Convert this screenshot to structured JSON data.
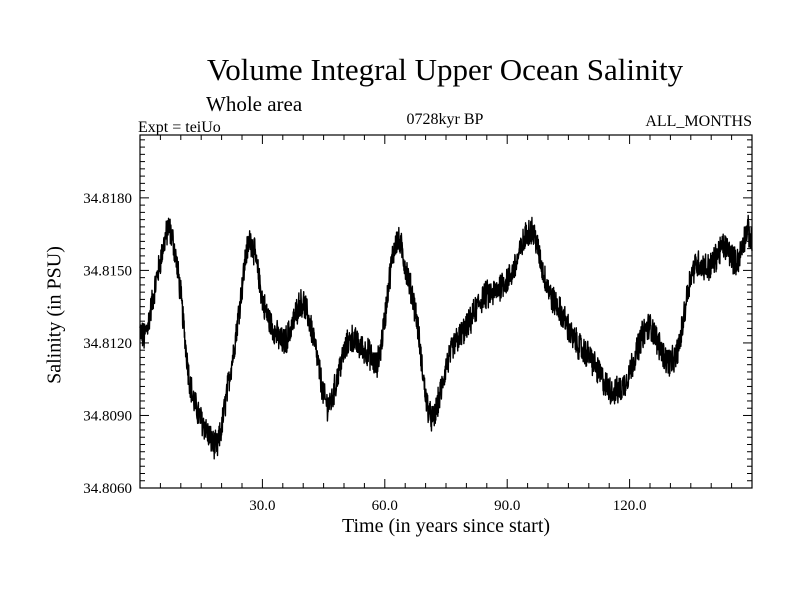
{
  "chart_data": {
    "type": "line",
    "title": "Volume Integral Upper Ocean Salinity",
    "subtitle": "Whole area",
    "experiment_label": "Expt = teiUo",
    "period_label": "0728kyr BP",
    "months_label": "ALL_MONTHS",
    "xlabel": "Time (in years since start)",
    "ylabel": "Salinity (in PSU)",
    "xlim": [
      0,
      150
    ],
    "ylim": [
      34.806,
      34.8206
    ],
    "xticks": [
      30.0,
      60.0,
      90.0,
      120.0
    ],
    "xtick_labels": [
      "30.0",
      "60.0",
      "90.0",
      "120.0"
    ],
    "yticks": [
      34.806,
      34.809,
      34.812,
      34.815,
      34.818
    ],
    "ytick_labels": [
      "34.8060",
      "34.8090",
      "34.8120",
      "34.8150",
      "34.8180"
    ],
    "series": [
      {
        "name": "Salinity",
        "color": "#000000",
        "noise_amplitude": 0.0006,
        "x": [
          0,
          1,
          2,
          3,
          4,
          5,
          6,
          7,
          8,
          9,
          10,
          11,
          12,
          13,
          14,
          15,
          16,
          17,
          18,
          19,
          20,
          21,
          22,
          23,
          24,
          25,
          26,
          27,
          28,
          29,
          30,
          31,
          32,
          33,
          34,
          35,
          36,
          37,
          38,
          39,
          40,
          41,
          42,
          43,
          44,
          45,
          46,
          47,
          48,
          49,
          50,
          51,
          52,
          53,
          54,
          55,
          56,
          57,
          58,
          59,
          60,
          61,
          62,
          63,
          64,
          65,
          66,
          67,
          68,
          69,
          70,
          71,
          72,
          73,
          74,
          75,
          76,
          77,
          78,
          79,
          80,
          81,
          82,
          83,
          84,
          85,
          86,
          87,
          88,
          89,
          90,
          91,
          92,
          93,
          94,
          95,
          96,
          97,
          98,
          99,
          100,
          101,
          102,
          103,
          104,
          105,
          106,
          107,
          108,
          109,
          110,
          111,
          112,
          113,
          114,
          115,
          116,
          117,
          118,
          119,
          120,
          121,
          122,
          123,
          124,
          125,
          126,
          127,
          128,
          129,
          130,
          131,
          132,
          133,
          134,
          135,
          136,
          137,
          138,
          139,
          140,
          141,
          142,
          143,
          144,
          145,
          146,
          147,
          148,
          149,
          150
        ],
        "y": [
          34.8125,
          34.8122,
          34.8128,
          34.8137,
          34.8146,
          34.8154,
          34.8162,
          34.8168,
          34.8163,
          34.8153,
          34.814,
          34.8122,
          34.8106,
          34.8097,
          34.8092,
          34.8088,
          34.8085,
          34.8081,
          34.8078,
          34.8077,
          34.8085,
          34.8096,
          34.8107,
          34.8117,
          34.813,
          34.8143,
          34.8157,
          34.8163,
          34.8158,
          34.8148,
          34.8138,
          34.8132,
          34.8128,
          34.8125,
          34.8122,
          34.812,
          34.8122,
          34.8126,
          34.8131,
          34.8136,
          34.8137,
          34.8132,
          34.8126,
          34.8118,
          34.8108,
          34.8098,
          34.8094,
          34.8096,
          34.8103,
          34.811,
          34.8116,
          34.812,
          34.8122,
          34.812,
          34.8118,
          34.8117,
          34.8116,
          34.8113,
          34.811,
          34.8118,
          34.813,
          34.8145,
          34.8157,
          34.8163,
          34.816,
          34.8152,
          34.8145,
          34.8138,
          34.8128,
          34.8112,
          34.8098,
          34.809,
          34.8088,
          34.8095,
          34.8102,
          34.811,
          34.8115,
          34.8119,
          34.8122,
          34.8124,
          34.8126,
          34.8129,
          34.8133,
          34.8136,
          34.8139,
          34.814,
          34.814,
          34.8141,
          34.8143,
          34.8145,
          34.8146,
          34.8148,
          34.8152,
          34.8157,
          34.8162,
          34.8166,
          34.8167,
          34.8163,
          34.8155,
          34.8148,
          34.8143,
          34.8138,
          34.8136,
          34.8133,
          34.813,
          34.8126,
          34.8122,
          34.812,
          34.8118,
          34.8116,
          34.8115,
          34.8112,
          34.8109,
          34.8106,
          34.8103,
          34.8101,
          34.81,
          34.81,
          34.8101,
          34.8104,
          34.8108,
          34.8113,
          34.8118,
          34.8123,
          34.8126,
          34.8127,
          34.8124,
          34.812,
          34.8116,
          34.8113,
          34.8112,
          34.8113,
          34.8118,
          34.8127,
          34.8139,
          34.8148,
          34.8152,
          34.8153,
          34.8152,
          34.8151,
          34.8152,
          34.8155,
          34.8158,
          34.816,
          34.8159,
          34.8156,
          34.8153,
          34.8156,
          34.8163,
          34.8167,
          34.816
        ]
      }
    ]
  }
}
